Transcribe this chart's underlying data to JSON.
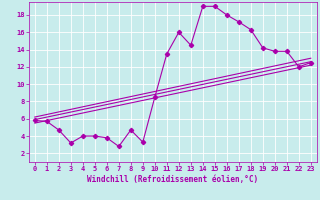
{
  "title": "",
  "xlabel": "Windchill (Refroidissement éolien,°C)",
  "ylabel": "",
  "bg_color": "#c8ecec",
  "line_color": "#aa00aa",
  "xlim": [
    -0.5,
    23.5
  ],
  "ylim": [
    1,
    19.5
  ],
  "yticks": [
    2,
    4,
    6,
    8,
    10,
    12,
    14,
    16,
    18
  ],
  "xticks": [
    0,
    1,
    2,
    3,
    4,
    5,
    6,
    7,
    8,
    9,
    10,
    11,
    12,
    13,
    14,
    15,
    16,
    17,
    18,
    19,
    20,
    21,
    22,
    23
  ],
  "curve1_x": [
    0,
    1,
    2,
    3,
    4,
    5,
    6,
    7,
    8,
    9,
    10,
    11,
    12,
    13,
    14,
    15,
    16,
    17,
    18,
    19,
    20,
    21,
    22,
    23
  ],
  "curve1_y": [
    5.8,
    5.7,
    4.7,
    3.2,
    4.0,
    4.0,
    3.8,
    2.8,
    4.7,
    3.3,
    8.5,
    13.5,
    16.0,
    14.5,
    19.0,
    19.0,
    18.0,
    17.2,
    16.3,
    14.2,
    13.8,
    13.8,
    12.0,
    12.5
  ],
  "line1_x": [
    0,
    23
  ],
  "line1_y": [
    5.5,
    12.2
  ],
  "line2_x": [
    0,
    23
  ],
  "line2_y": [
    5.9,
    12.6
  ],
  "line3_x": [
    0,
    23
  ],
  "line3_y": [
    6.2,
    13.0
  ],
  "grid_color": "#ffffff",
  "marker": "D",
  "markersize": 2.2,
  "linewidth": 0.8,
  "tick_fontsize": 5.0,
  "xlabel_fontsize": 5.5
}
